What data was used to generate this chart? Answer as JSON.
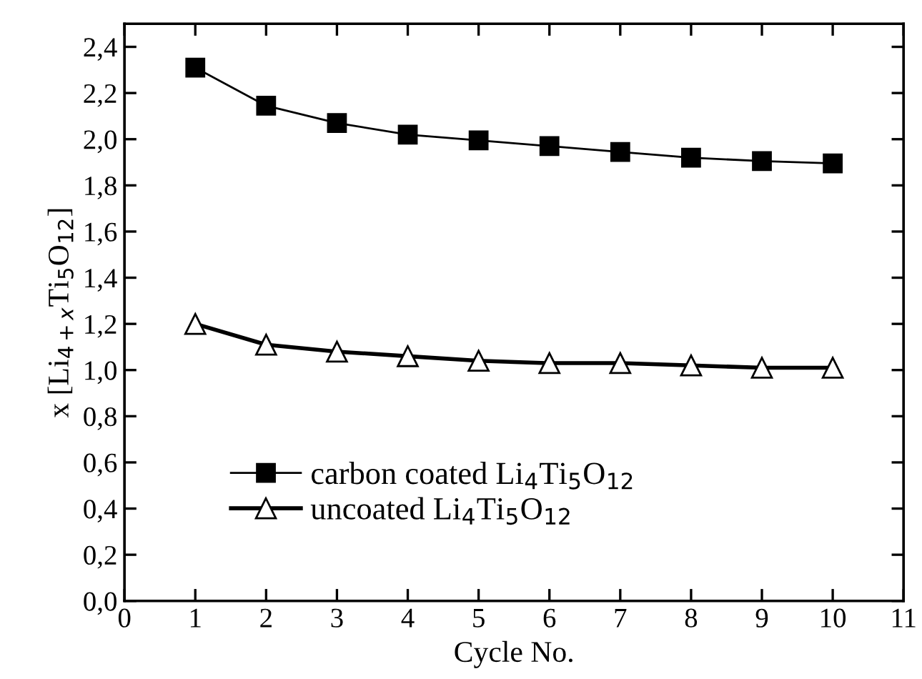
{
  "chart_data": {
    "type": "line",
    "xlabel": "Cycle No.",
    "ylabel": "x [Li$_{4+x}$Ti$_{5}$O$_{12}$]",
    "x": [
      1,
      2,
      3,
      4,
      5,
      6,
      7,
      8,
      9,
      10
    ],
    "series": [
      {
        "name": "carbon coated Li$_{4}$Ti$_{5}$O$_{12}$",
        "color": "#000000",
        "marker": "square",
        "values": [
          2.31,
          2.145,
          2.07,
          2.02,
          1.995,
          1.97,
          1.945,
          1.92,
          1.905,
          1.895
        ]
      },
      {
        "name": "uncoated Li$_{4}$Ti$_{5}$O$_{12}$",
        "color": "#000000",
        "marker": "triangle",
        "values": [
          1.2,
          1.11,
          1.08,
          1.06,
          1.04,
          1.03,
          1.03,
          1.02,
          1.01,
          1.01
        ]
      }
    ],
    "xlim": [
      0,
      11
    ],
    "xticks": [
      0,
      1,
      2,
      3,
      4,
      5,
      6,
      7,
      8,
      9,
      10,
      11
    ],
    "ylim": [
      0,
      2.5
    ],
    "yticks": [
      {
        "value": 0,
        "label": "0,0"
      },
      {
        "value": 0.2,
        "label": "0,2"
      },
      {
        "value": 0.4,
        "label": "0,4"
      },
      {
        "value": 0.6,
        "label": "0,6"
      },
      {
        "value": 0.8,
        "label": "0,8"
      },
      {
        "value": 1.0,
        "label": "1,0"
      },
      {
        "value": 1.2,
        "label": "1,2"
      },
      {
        "value": 1.4,
        "label": "1,4"
      },
      {
        "value": 1.6,
        "label": "1,6"
      },
      {
        "value": 1.8,
        "label": "1,8"
      },
      {
        "value": 2.0,
        "label": "2,0"
      },
      {
        "value": 2.2,
        "label": "2,2"
      },
      {
        "value": 2.4,
        "label": "2,4"
      }
    ],
    "grid": false,
    "legend": "bottom left",
    "line_style": "solid"
  }
}
